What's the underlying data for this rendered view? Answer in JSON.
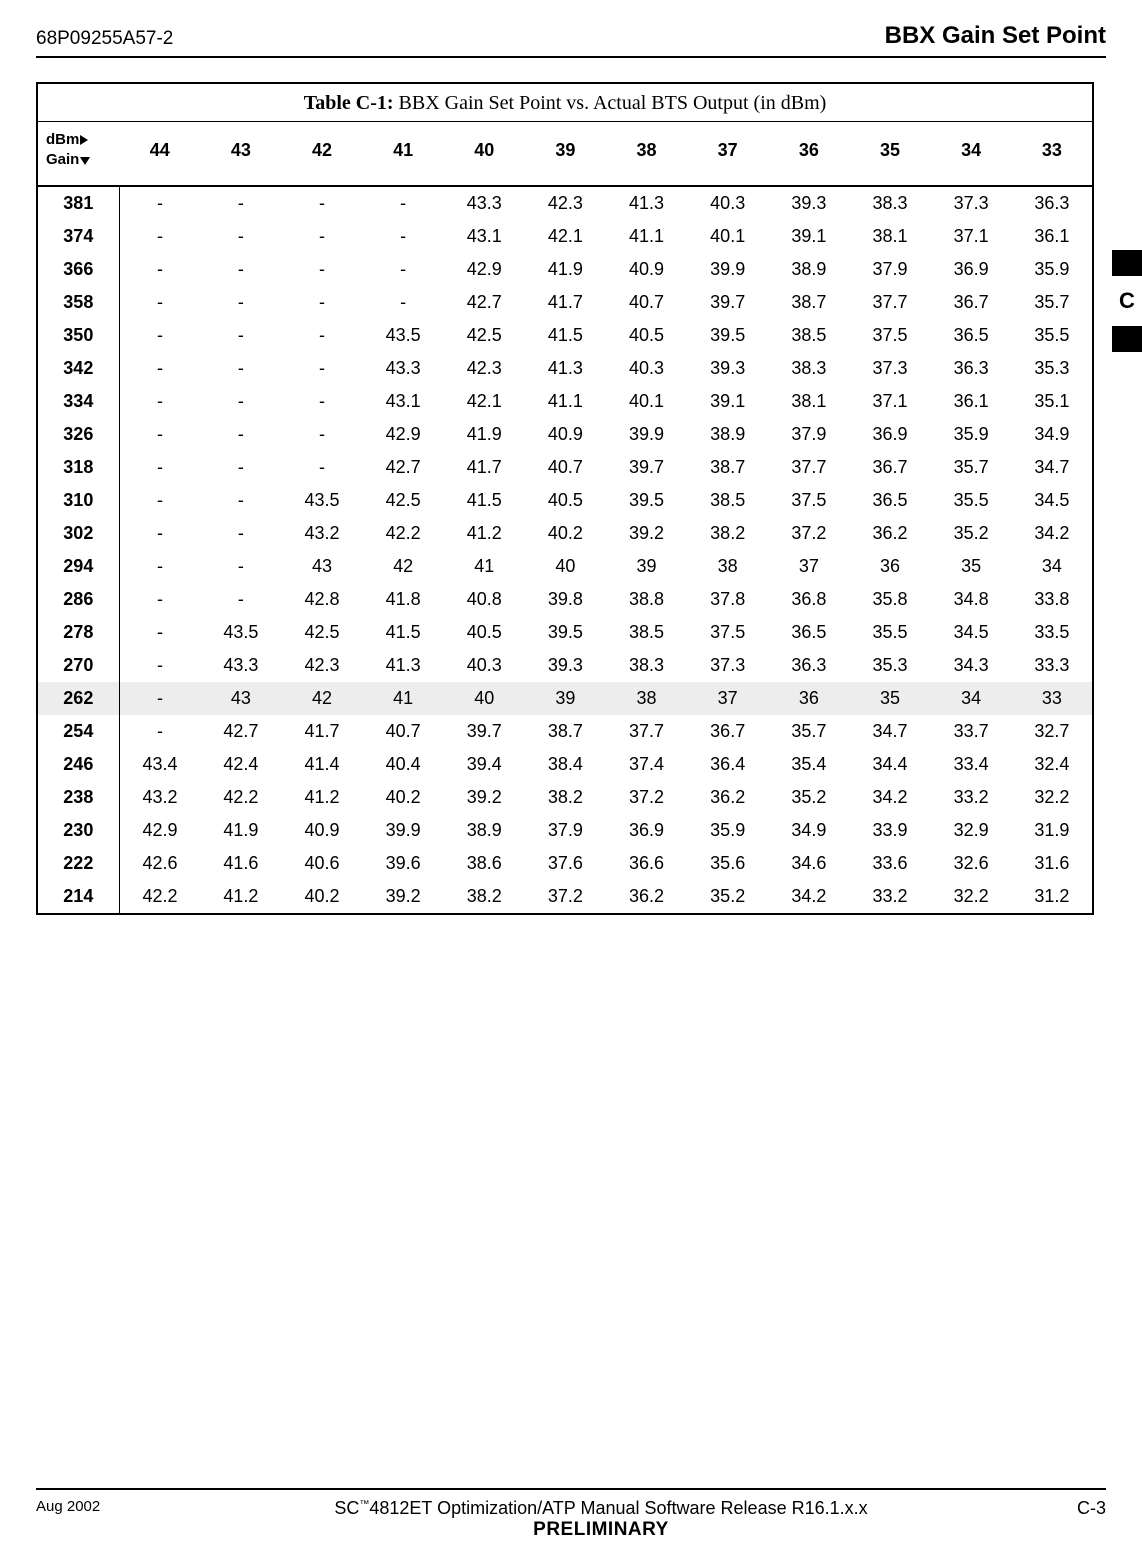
{
  "header": {
    "doc_id": "68P09255A57-2",
    "title": "BBX Gain Set Point"
  },
  "side_tab": {
    "label": "C"
  },
  "table": {
    "caption_bold": "Table C-1:",
    "caption_rest": " BBX Gain Set Point vs. Actual BTS Output (in dBm)",
    "corner_top": "dBm",
    "corner_bot": "Gain",
    "columns": [
      "44",
      "43",
      "42",
      "41",
      "40",
      "39",
      "38",
      "37",
      "36",
      "35",
      "34",
      "33"
    ],
    "highlight_gain": "262",
    "rows": [
      {
        "gain": "381",
        "v": [
          "-",
          "-",
          "-",
          "-",
          "43.3",
          "42.3",
          "41.3",
          "40.3",
          "39.3",
          "38.3",
          "37.3",
          "36.3"
        ]
      },
      {
        "gain": "374",
        "v": [
          "-",
          "-",
          "-",
          "-",
          "43.1",
          "42.1",
          "41.1",
          "40.1",
          "39.1",
          "38.1",
          "37.1",
          "36.1"
        ]
      },
      {
        "gain": "366",
        "v": [
          "-",
          "-",
          "-",
          "-",
          "42.9",
          "41.9",
          "40.9",
          "39.9",
          "38.9",
          "37.9",
          "36.9",
          "35.9"
        ]
      },
      {
        "gain": "358",
        "v": [
          "-",
          "-",
          "-",
          "-",
          "42.7",
          "41.7",
          "40.7",
          "39.7",
          "38.7",
          "37.7",
          "36.7",
          "35.7"
        ]
      },
      {
        "gain": "350",
        "v": [
          "-",
          "-",
          "-",
          "43.5",
          "42.5",
          "41.5",
          "40.5",
          "39.5",
          "38.5",
          "37.5",
          "36.5",
          "35.5"
        ]
      },
      {
        "gain": "342",
        "v": [
          "-",
          "-",
          "-",
          "43.3",
          "42.3",
          "41.3",
          "40.3",
          "39.3",
          "38.3",
          "37.3",
          "36.3",
          "35.3"
        ]
      },
      {
        "gain": "334",
        "v": [
          "-",
          "-",
          "-",
          "43.1",
          "42.1",
          "41.1",
          "40.1",
          "39.1",
          "38.1",
          "37.1",
          "36.1",
          "35.1"
        ]
      },
      {
        "gain": "326",
        "v": [
          "-",
          "-",
          "-",
          "42.9",
          "41.9",
          "40.9",
          "39.9",
          "38.9",
          "37.9",
          "36.9",
          "35.9",
          "34.9"
        ]
      },
      {
        "gain": "318",
        "v": [
          "-",
          "-",
          "-",
          "42.7",
          "41.7",
          "40.7",
          "39.7",
          "38.7",
          "37.7",
          "36.7",
          "35.7",
          "34.7"
        ]
      },
      {
        "gain": "310",
        "v": [
          "-",
          "-",
          "43.5",
          "42.5",
          "41.5",
          "40.5",
          "39.5",
          "38.5",
          "37.5",
          "36.5",
          "35.5",
          "34.5"
        ]
      },
      {
        "gain": "302",
        "v": [
          "-",
          "-",
          "43.2",
          "42.2",
          "41.2",
          "40.2",
          "39.2",
          "38.2",
          "37.2",
          "36.2",
          "35.2",
          "34.2"
        ]
      },
      {
        "gain": "294",
        "v": [
          "-",
          "-",
          "43",
          "42",
          "41",
          "40",
          "39",
          "38",
          "37",
          "36",
          "35",
          "34"
        ]
      },
      {
        "gain": "286",
        "v": [
          "-",
          "-",
          "42.8",
          "41.8",
          "40.8",
          "39.8",
          "38.8",
          "37.8",
          "36.8",
          "35.8",
          "34.8",
          "33.8"
        ]
      },
      {
        "gain": "278",
        "v": [
          "-",
          "43.5",
          "42.5",
          "41.5",
          "40.5",
          "39.5",
          "38.5",
          "37.5",
          "36.5",
          "35.5",
          "34.5",
          "33.5"
        ]
      },
      {
        "gain": "270",
        "v": [
          "-",
          "43.3",
          "42.3",
          "41.3",
          "40.3",
          "39.3",
          "38.3",
          "37.3",
          "36.3",
          "35.3",
          "34.3",
          "33.3"
        ]
      },
      {
        "gain": "262",
        "v": [
          "-",
          "43",
          "42",
          "41",
          "40",
          "39",
          "38",
          "37",
          "36",
          "35",
          "34",
          "33"
        ]
      },
      {
        "gain": "254",
        "v": [
          "-",
          "42.7",
          "41.7",
          "40.7",
          "39.7",
          "38.7",
          "37.7",
          "36.7",
          "35.7",
          "34.7",
          "33.7",
          "32.7"
        ]
      },
      {
        "gain": "246",
        "v": [
          "43.4",
          "42.4",
          "41.4",
          "40.4",
          "39.4",
          "38.4",
          "37.4",
          "36.4",
          "35.4",
          "34.4",
          "33.4",
          "32.4"
        ]
      },
      {
        "gain": "238",
        "v": [
          "43.2",
          "42.2",
          "41.2",
          "40.2",
          "39.2",
          "38.2",
          "37.2",
          "36.2",
          "35.2",
          "34.2",
          "33.2",
          "32.2"
        ]
      },
      {
        "gain": "230",
        "v": [
          "42.9",
          "41.9",
          "40.9",
          "39.9",
          "38.9",
          "37.9",
          "36.9",
          "35.9",
          "34.9",
          "33.9",
          "32.9",
          "31.9"
        ]
      },
      {
        "gain": "222",
        "v": [
          "42.6",
          "41.6",
          "40.6",
          "39.6",
          "38.6",
          "37.6",
          "36.6",
          "35.6",
          "34.6",
          "33.6",
          "32.6",
          "31.6"
        ]
      },
      {
        "gain": "214",
        "v": [
          "42.2",
          "41.2",
          "40.2",
          "39.2",
          "38.2",
          "37.2",
          "36.2",
          "35.2",
          "34.2",
          "33.2",
          "32.2",
          "31.2"
        ]
      }
    ]
  },
  "footer": {
    "date": "Aug 2002",
    "center_prefix": "SC",
    "center_tm": "™",
    "center_line1_rest": "4812ET Optimization/ATP Manual Software Release R16.1.x.x",
    "center_line2": "PRELIMINARY",
    "page": "C-3"
  },
  "colors": {
    "highlight_bg": "#ededed",
    "border": "#000000",
    "text": "#000000"
  }
}
